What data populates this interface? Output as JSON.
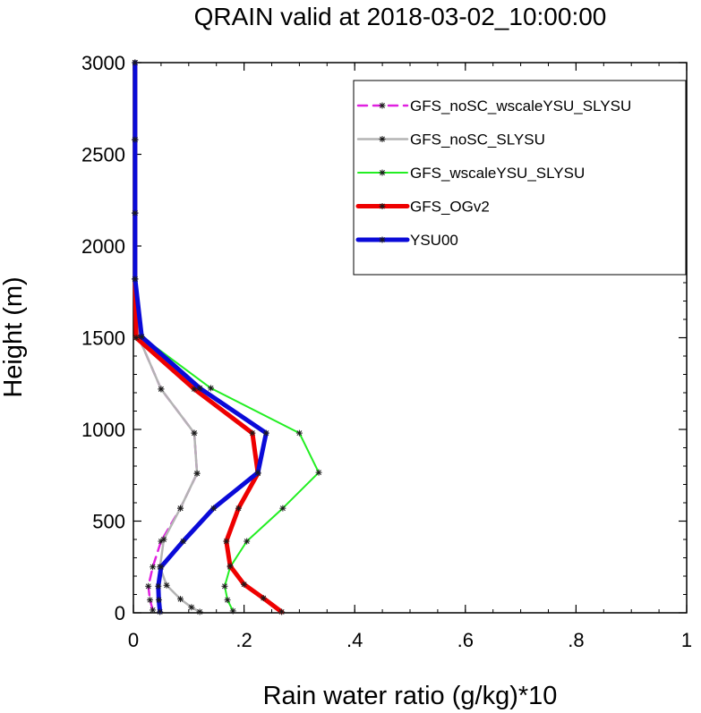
{
  "chart_data": {
    "type": "line",
    "title": "QRAIN valid at 2018-03-02_10:00:00",
    "xlabel": "Rain water ratio (g/kg)*10",
    "ylabel": "Height (m)",
    "xlim": [
      0,
      1
    ],
    "ylim": [
      0,
      3000
    ],
    "x_ticks": [
      0,
      0.2,
      0.4,
      0.6,
      0.8,
      1
    ],
    "x_tick_labels": [
      "0",
      ".2",
      ".4",
      ".6",
      ".8",
      "1"
    ],
    "y_ticks": [
      0,
      500,
      1000,
      1500,
      2000,
      2500,
      3000
    ],
    "y_tick_labels": [
      "0",
      "500",
      "1000",
      "1500",
      "2000",
      "2500",
      "3000"
    ],
    "grid": false,
    "legend_position": "top-right",
    "series": [
      {
        "name": "GFS_noSC_wscaleYSU_SLYSU",
        "color": "#e020e0",
        "dash": true,
        "width": 2.5,
        "points": [
          [
            0.035,
            15
          ],
          [
            0.03,
            70
          ],
          [
            0.027,
            145
          ],
          [
            0.035,
            250
          ],
          [
            0.05,
            390
          ],
          [
            0.085,
            570
          ],
          [
            0.115,
            760
          ],
          [
            0.11,
            980
          ],
          [
            0.05,
            1220
          ],
          [
            0.01,
            1500
          ],
          [
            0.003,
            1820
          ],
          [
            0.003,
            2180
          ],
          [
            0.003,
            2580
          ],
          [
            0.003,
            3000
          ]
        ]
      },
      {
        "name": "GFS_noSC_SLYSU",
        "color": "#b4b4b4",
        "dash": false,
        "width": 2.5,
        "points": [
          [
            0.12,
            5
          ],
          [
            0.105,
            30
          ],
          [
            0.085,
            75
          ],
          [
            0.06,
            150
          ],
          [
            0.048,
            250
          ],
          [
            0.055,
            400
          ],
          [
            0.085,
            570
          ],
          [
            0.115,
            760
          ],
          [
            0.11,
            980
          ],
          [
            0.05,
            1220
          ],
          [
            0.01,
            1500
          ],
          [
            0.003,
            1820
          ],
          [
            0.003,
            2180
          ],
          [
            0.003,
            2580
          ],
          [
            0.003,
            3000
          ]
        ]
      },
      {
        "name": "GFS_wscaleYSU_SLYSU",
        "color": "#22ee22",
        "dash": false,
        "width": 2,
        "points": [
          [
            0.18,
            10
          ],
          [
            0.17,
            70
          ],
          [
            0.165,
            145
          ],
          [
            0.175,
            250
          ],
          [
            0.205,
            390
          ],
          [
            0.27,
            570
          ],
          [
            0.335,
            765
          ],
          [
            0.3,
            980
          ],
          [
            0.14,
            1225
          ],
          [
            0.015,
            1505
          ],
          [
            0.003,
            1820
          ],
          [
            0.003,
            2180
          ],
          [
            0.003,
            2580
          ],
          [
            0.003,
            3000
          ]
        ]
      },
      {
        "name": "GFS_OGv2",
        "color": "#ee0000",
        "dash": false,
        "width": 5,
        "points": [
          [
            0.268,
            5
          ],
          [
            0.235,
            80
          ],
          [
            0.2,
            155
          ],
          [
            0.175,
            255
          ],
          [
            0.168,
            390
          ],
          [
            0.19,
            570
          ],
          [
            0.225,
            760
          ],
          [
            0.215,
            980
          ],
          [
            0.11,
            1220
          ],
          [
            0.005,
            1500
          ],
          [
            0.003,
            1820
          ],
          [
            0.003,
            2180
          ],
          [
            0.003,
            2580
          ],
          [
            0.003,
            3000
          ]
        ]
      },
      {
        "name": "YSU00",
        "color": "#0a0ad8",
        "dash": false,
        "width": 5,
        "points": [
          [
            0.048,
            5
          ],
          [
            0.046,
            70
          ],
          [
            0.045,
            145
          ],
          [
            0.05,
            250
          ],
          [
            0.09,
            390
          ],
          [
            0.145,
            570
          ],
          [
            0.225,
            765
          ],
          [
            0.24,
            980
          ],
          [
            0.12,
            1225
          ],
          [
            0.015,
            1505
          ],
          [
            0.003,
            1820
          ],
          [
            0.003,
            2180
          ],
          [
            0.003,
            2580
          ],
          [
            0.003,
            3000
          ]
        ]
      }
    ]
  }
}
